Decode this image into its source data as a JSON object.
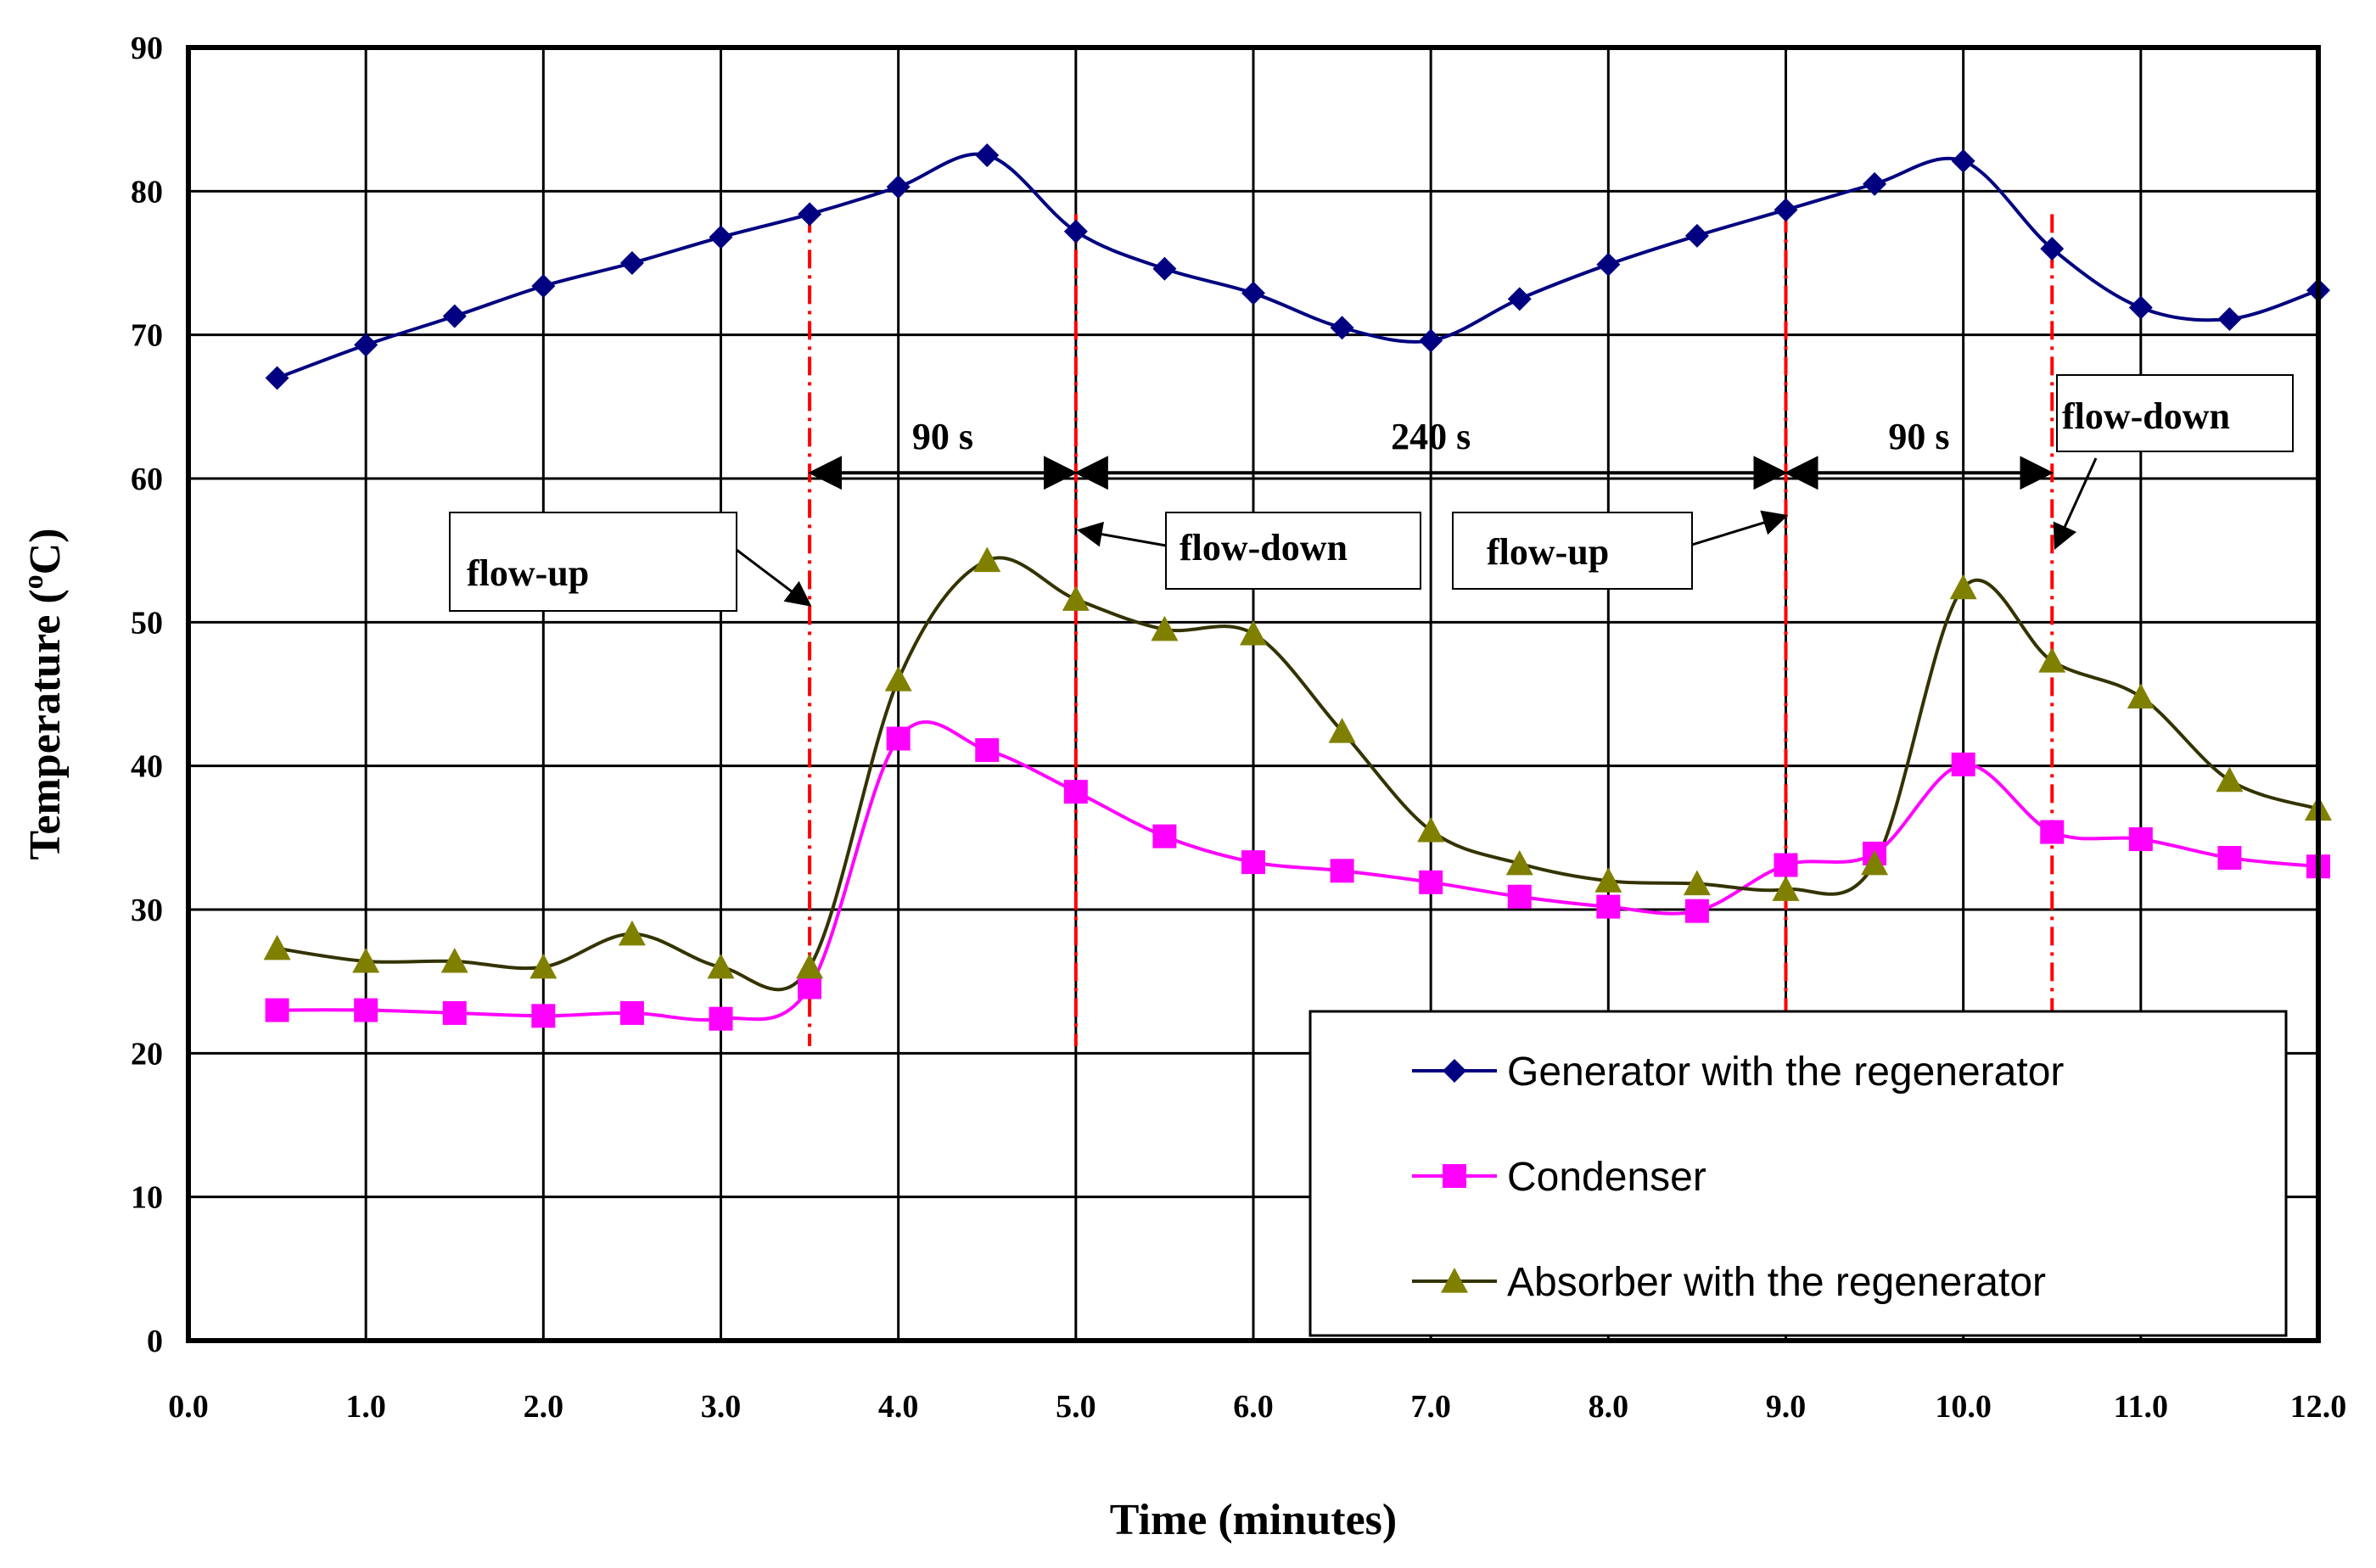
{
  "chart_data": {
    "type": "line",
    "title": "",
    "xlabel": "Time (minutes)",
    "ylabel_main": "Temperature (",
    "ylabel_sup": "o",
    "ylabel_end": "C)",
    "xlim": [
      0,
      12
    ],
    "ylim": [
      0,
      90
    ],
    "xticks": [
      0,
      1,
      2,
      3,
      4,
      5,
      6,
      7,
      8,
      9,
      10,
      11,
      12
    ],
    "xtick_labels": [
      "0.0",
      "1.0",
      "2.0",
      "3.0",
      "4.0",
      "5.0",
      "6.0",
      "7.0",
      "8.0",
      "9.0",
      "10.0",
      "11.0",
      "12.0"
    ],
    "yticks": [
      0,
      10,
      20,
      30,
      40,
      50,
      60,
      70,
      80,
      90
    ],
    "ytick_labels": [
      "0",
      "10",
      "20",
      "30",
      "40",
      "50",
      "60",
      "70",
      "80",
      "90"
    ],
    "grid": true,
    "legend_position": "bottom-right",
    "series": [
      {
        "name": "Generator with the regenerator",
        "color": "#000080",
        "marker": "diamond",
        "x": [
          0.5,
          1.0,
          1.5,
          2.0,
          2.5,
          3.0,
          3.5,
          4.0,
          4.5,
          5.0,
          5.5,
          6.0,
          6.5,
          7.0,
          7.5,
          8.0,
          8.5,
          9.0,
          9.5,
          10.0,
          10.5,
          11.0,
          11.5,
          12.0
        ],
        "values": [
          67.0,
          69.3,
          71.3,
          73.4,
          75.0,
          76.8,
          78.4,
          80.3,
          82.5,
          77.2,
          74.6,
          72.9,
          70.5,
          69.6,
          72.5,
          74.9,
          76.9,
          78.7,
          80.5,
          82.1,
          76.0,
          71.9,
          71.1,
          73.1
        ]
      },
      {
        "name": "Condenser",
        "color": "#FF00FF",
        "marker": "square",
        "x": [
          0.5,
          1.0,
          1.5,
          2.0,
          2.5,
          3.0,
          3.5,
          4.0,
          4.5,
          5.0,
          5.5,
          6.0,
          6.5,
          7.0,
          7.5,
          8.0,
          8.5,
          9.0,
          9.5,
          10.0,
          10.5,
          11.0,
          11.5,
          12.0
        ],
        "values": [
          23.0,
          23.0,
          22.8,
          22.6,
          22.8,
          22.4,
          24.6,
          41.9,
          41.1,
          38.2,
          35.1,
          33.3,
          32.7,
          31.9,
          30.9,
          30.2,
          29.9,
          33.1,
          33.9,
          40.1,
          35.4,
          34.9,
          33.6,
          33.0
        ]
      },
      {
        "name": "Absorber with the regenerator",
        "color": "#333300",
        "marker_color": "#808000",
        "marker": "triangle",
        "x": [
          0.5,
          1.0,
          1.5,
          2.0,
          2.5,
          3.0,
          3.5,
          4.0,
          4.5,
          5.0,
          5.5,
          6.0,
          6.5,
          7.0,
          7.5,
          8.0,
          8.5,
          9.0,
          9.5,
          10.0,
          10.5,
          11.0,
          11.5,
          12.0
        ],
        "values": [
          27.3,
          26.4,
          26.4,
          26.0,
          28.3,
          26.0,
          26.0,
          46.0,
          54.3,
          51.6,
          49.5,
          49.2,
          42.4,
          35.5,
          33.2,
          32.0,
          31.8,
          31.4,
          33.2,
          52.4,
          47.3,
          44.8,
          39.0,
          37.0
        ]
      }
    ],
    "event_lines": [
      3.5,
      5.0,
      9.0,
      10.5
    ],
    "annotations": {
      "intervals": [
        {
          "label": "90 s",
          "from": 3.5,
          "to": 5.0
        },
        {
          "label": "240 s",
          "from": 5.0,
          "to": 9.0
        },
        {
          "label": "90 s",
          "from": 9.0,
          "to": 10.5
        }
      ],
      "flow_labels": [
        {
          "label": "flow-up",
          "target_x": 3.5
        },
        {
          "label": "flow-down",
          "target_x": 5.0
        },
        {
          "label": "flow-up",
          "target_x": 9.0
        },
        {
          "label": "flow-down",
          "target_x": 10.5
        }
      ]
    }
  }
}
